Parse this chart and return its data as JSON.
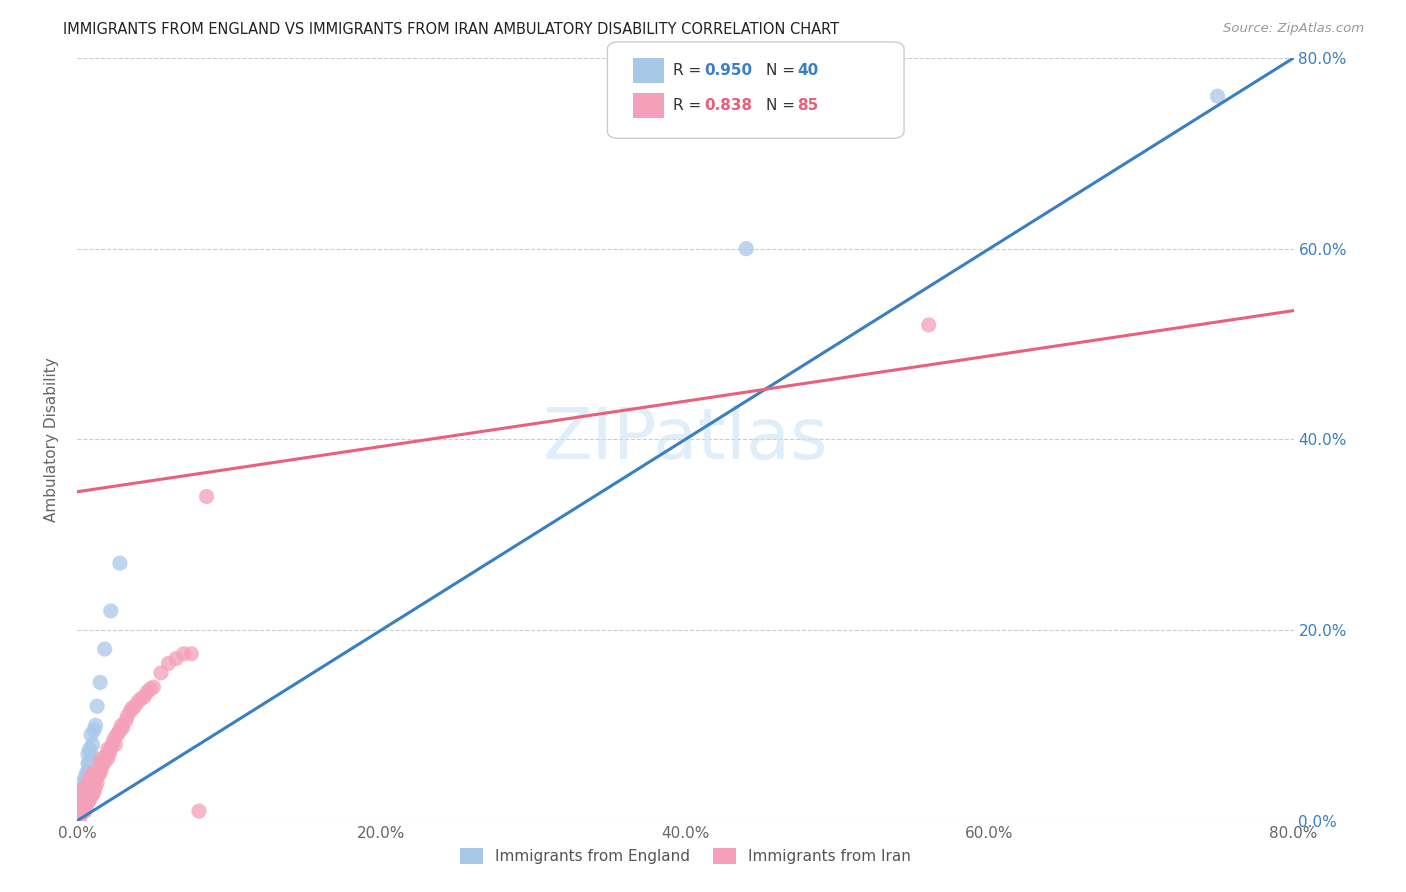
{
  "title": "IMMIGRANTS FROM ENGLAND VS IMMIGRANTS FROM IRAN AMBULATORY DISABILITY CORRELATION CHART",
  "source": "Source: ZipAtlas.com",
  "ylabel": "Ambulatory Disability",
  "legend_england": "Immigrants from England",
  "legend_iran": "Immigrants from Iran",
  "legend_R_england": "R = 0.950",
  "legend_N_england": "N = 40",
  "legend_R_iran": "R = 0.838",
  "legend_N_iran": "N = 85",
  "england_color": "#a8c8e8",
  "iran_color": "#f4a0b8",
  "england_line_color": "#3a7fc1",
  "iran_line_color": "#e8607a",
  "watermark": "ZIPatlas",
  "xlim": [
    0.0,
    0.8
  ],
  "ylim": [
    0.0,
    0.8
  ],
  "eng_line_x0": 0.0,
  "eng_line_y0": 0.0,
  "eng_line_x1": 0.8,
  "eng_line_y1": 0.8,
  "iran_line_x0": 0.0,
  "iran_line_y0": 0.345,
  "iran_line_x1": 0.8,
  "iran_line_y1": 0.535,
  "england_scatter_x": [
    0.001,
    0.001,
    0.002,
    0.002,
    0.002,
    0.002,
    0.003,
    0.003,
    0.003,
    0.003,
    0.003,
    0.004,
    0.004,
    0.004,
    0.004,
    0.005,
    0.005,
    0.005,
    0.005,
    0.006,
    0.006,
    0.006,
    0.007,
    0.007,
    0.007,
    0.007,
    0.008,
    0.008,
    0.009,
    0.009,
    0.01,
    0.011,
    0.012,
    0.013,
    0.015,
    0.018,
    0.022,
    0.028,
    0.44,
    0.75
  ],
  "england_scatter_y": [
    0.01,
    0.015,
    0.01,
    0.015,
    0.02,
    0.025,
    0.01,
    0.015,
    0.02,
    0.025,
    0.03,
    0.02,
    0.03,
    0.035,
    0.04,
    0.025,
    0.03,
    0.035,
    0.045,
    0.03,
    0.04,
    0.05,
    0.04,
    0.05,
    0.06,
    0.07,
    0.06,
    0.075,
    0.07,
    0.09,
    0.08,
    0.095,
    0.1,
    0.12,
    0.145,
    0.18,
    0.22,
    0.27,
    0.6,
    0.76
  ],
  "iran_scatter_x": [
    0.001,
    0.001,
    0.001,
    0.002,
    0.002,
    0.002,
    0.002,
    0.003,
    0.003,
    0.003,
    0.003,
    0.003,
    0.004,
    0.004,
    0.004,
    0.004,
    0.005,
    0.005,
    0.005,
    0.005,
    0.005,
    0.005,
    0.006,
    0.006,
    0.006,
    0.006,
    0.007,
    0.007,
    0.007,
    0.008,
    0.008,
    0.008,
    0.008,
    0.009,
    0.009,
    0.01,
    0.01,
    0.01,
    0.01,
    0.011,
    0.011,
    0.011,
    0.012,
    0.012,
    0.013,
    0.013,
    0.014,
    0.015,
    0.015,
    0.016,
    0.016,
    0.017,
    0.018,
    0.019,
    0.02,
    0.02,
    0.021,
    0.022,
    0.023,
    0.024,
    0.025,
    0.026,
    0.027,
    0.028,
    0.029,
    0.03,
    0.032,
    0.033,
    0.035,
    0.036,
    0.038,
    0.04,
    0.042,
    0.044,
    0.046,
    0.048,
    0.05,
    0.055,
    0.06,
    0.065,
    0.07,
    0.075,
    0.08,
    0.56,
    0.085
  ],
  "iran_scatter_y": [
    0.005,
    0.01,
    0.015,
    0.005,
    0.01,
    0.015,
    0.02,
    0.008,
    0.012,
    0.018,
    0.022,
    0.028,
    0.01,
    0.015,
    0.022,
    0.028,
    0.01,
    0.015,
    0.02,
    0.025,
    0.03,
    0.035,
    0.015,
    0.02,
    0.025,
    0.032,
    0.02,
    0.025,
    0.035,
    0.022,
    0.03,
    0.038,
    0.045,
    0.025,
    0.038,
    0.028,
    0.035,
    0.042,
    0.05,
    0.03,
    0.038,
    0.048,
    0.035,
    0.045,
    0.04,
    0.05,
    0.048,
    0.05,
    0.06,
    0.055,
    0.065,
    0.06,
    0.062,
    0.068,
    0.065,
    0.075,
    0.07,
    0.075,
    0.08,
    0.085,
    0.08,
    0.09,
    0.092,
    0.095,
    0.1,
    0.098,
    0.105,
    0.11,
    0.115,
    0.118,
    0.12,
    0.125,
    0.128,
    0.13,
    0.135,
    0.138,
    0.14,
    0.155,
    0.165,
    0.17,
    0.175,
    0.175,
    0.01,
    0.52,
    0.34
  ]
}
